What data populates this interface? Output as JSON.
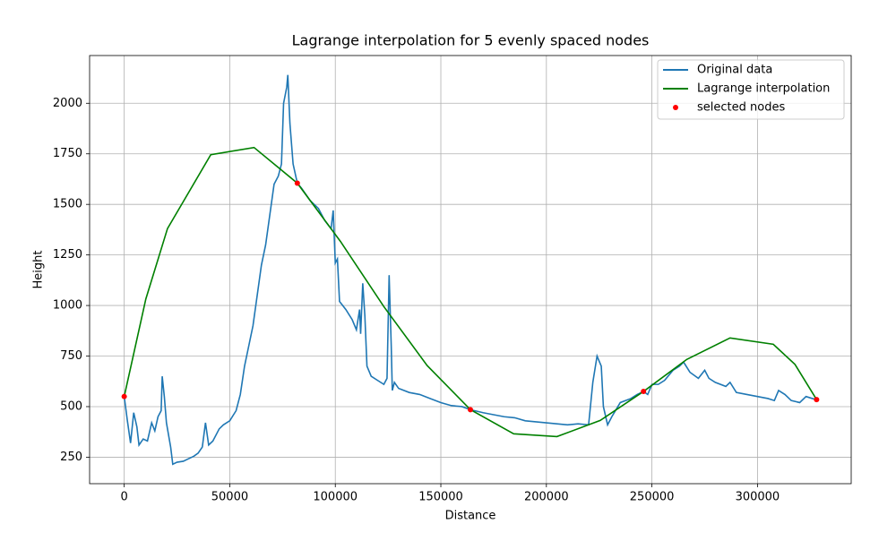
{
  "chart_data": {
    "type": "line",
    "title": "Lagrange interpolation for 5 evenly spaced nodes",
    "x_label": "Distance",
    "y_label": "Height",
    "xlim": [
      -16400,
      344400
    ],
    "ylim": [
      119,
      2236
    ],
    "xticks": [
      0,
      50000,
      100000,
      150000,
      200000,
      250000,
      300000
    ],
    "yticks": [
      250,
      500,
      750,
      1000,
      1250,
      1500,
      1750,
      2000
    ],
    "grid": true,
    "legend": "upper right",
    "series": [
      {
        "name": "Original data",
        "color": "#1f77b4",
        "kind": "line",
        "x": [
          0,
          1500,
          3000,
          4500,
          6000,
          7000,
          9000,
          11000,
          13000,
          14500,
          16000,
          17500,
          18000,
          19000,
          20000,
          22000,
          23000,
          25000,
          28000,
          30000,
          33000,
          35000,
          37000,
          38500,
          40000,
          42000,
          45000,
          47000,
          50000,
          53000,
          55000,
          57000,
          59000,
          61000,
          63000,
          65000,
          67000,
          69000,
          71000,
          73000,
          74500,
          75500,
          77000,
          77500,
          78500,
          80000,
          82000,
          84000,
          86000,
          88000,
          92000,
          95000,
          98000,
          99000,
          100000,
          101000,
          102000,
          105000,
          108000,
          110000,
          111500,
          112000,
          113000,
          114000,
          115000,
          117000,
          120000,
          123000,
          124500,
          125500,
          126500,
          127000,
          128000,
          130000,
          135000,
          140000,
          145000,
          150000,
          155000,
          160000,
          164000,
          170000,
          175000,
          180000,
          185000,
          190000,
          195000,
          200000,
          205000,
          210000,
          215000,
          220000,
          222000,
          224000,
          226000,
          227000,
          229000,
          231000,
          235000,
          240000,
          243000,
          246000,
          248000,
          250000,
          253000,
          256000,
          260000,
          263000,
          265000,
          268000,
          272000,
          275000,
          277000,
          280000,
          285000,
          287000,
          290000,
          295000,
          300000,
          305000,
          308000,
          310000,
          313000,
          316000,
          320000,
          323000,
          326000,
          328000
        ],
        "values": [
          550,
          430,
          320,
          470,
          400,
          310,
          340,
          330,
          420,
          380,
          450,
          480,
          650,
          550,
          420,
          300,
          215,
          225,
          230,
          240,
          255,
          270,
          300,
          420,
          310,
          330,
          390,
          410,
          430,
          480,
          560,
          700,
          800,
          900,
          1050,
          1200,
          1300,
          1450,
          1600,
          1640,
          1700,
          2000,
          2080,
          2140,
          1900,
          1700,
          1605,
          1580,
          1550,
          1520,
          1480,
          1420,
          1380,
          1470,
          1210,
          1230,
          1020,
          980,
          930,
          880,
          980,
          860,
          1110,
          950,
          700,
          650,
          630,
          610,
          640,
          1150,
          800,
          580,
          620,
          590,
          570,
          560,
          540,
          520,
          505,
          500,
          485,
          470,
          460,
          450,
          445,
          430,
          425,
          420,
          415,
          410,
          415,
          410,
          620,
          750,
          700,
          500,
          410,
          450,
          520,
          540,
          560,
          575,
          560,
          610,
          610,
          630,
          680,
          700,
          720,
          670,
          640,
          680,
          640,
          620,
          600,
          620,
          570,
          560,
          550,
          540,
          530,
          580,
          560,
          530,
          520,
          550,
          540,
          535
        ]
      },
      {
        "name": "Lagrange interpolation",
        "color": "#008000",
        "kind": "line",
        "x": [
          0,
          10250,
          20500,
          41000,
          61500,
          82000,
          102500,
          123000,
          143500,
          164000,
          184500,
          205000,
          225500,
          246000,
          266500,
          287000,
          307500,
          317750,
          328000
        ],
        "values": [
          550,
          1032.6,
          1380.4,
          1745.6,
          1781.2,
          1605,
          1316.0,
          994.6,
          703.2,
          485,
          365.6,
          351.8,
          431.6,
          575,
          733.4,
          839.6,
          808.2,
          709.0,
          535
        ]
      },
      {
        "name": "selected nodes",
        "color": "#ff0000",
        "kind": "scatter",
        "x": [
          0,
          82000,
          164000,
          246000,
          328000
        ],
        "values": [
          550,
          1605,
          485,
          575,
          535
        ]
      }
    ]
  }
}
